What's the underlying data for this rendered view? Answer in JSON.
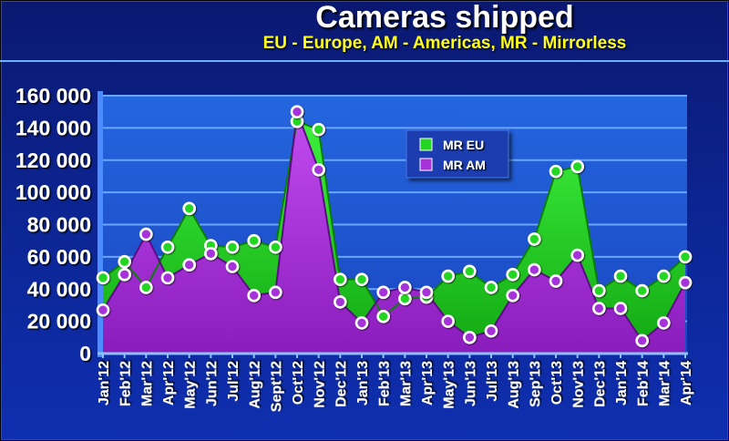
{
  "chart_data": {
    "type": "area",
    "title": "Cameras shipped",
    "subtitle": "EU - Europe, AM - Americas, MR - Mirrorless",
    "categories": [
      "Jan'12",
      "Feb'12",
      "Mar'12",
      "Apr'12",
      "May'12",
      "Jun'12",
      "Jul'12",
      "Aug'12",
      "Sept'12",
      "Oct'12",
      "Nov'12",
      "Dec'12",
      "Jan'13",
      "Feb'13",
      "Mar'13",
      "Apr'13",
      "May'13",
      "Jun'13",
      "Jul'13",
      "Aug'13",
      "Sep'13",
      "Oct'13",
      "Nov'13",
      "Dec'13",
      "Jan'14",
      "Feb'14",
      "Mar'14",
      "Apr'14"
    ],
    "ylim": [
      0,
      160000
    ],
    "yticks": [
      0,
      20000,
      40000,
      60000,
      80000,
      100000,
      120000,
      140000,
      160000
    ],
    "ytick_labels": [
      "0",
      "20 000",
      "40 000",
      "60 000",
      "80 000",
      "100 000",
      "120 000",
      "140 000",
      "160 000"
    ],
    "grid": true,
    "legend_position": "top-center",
    "series": [
      {
        "name": "MR EU",
        "color": "#22d622",
        "values": [
          47000,
          57000,
          41000,
          66000,
          90000,
          67000,
          66000,
          70000,
          66000,
          144000,
          139000,
          46000,
          46000,
          23000,
          34000,
          35000,
          48000,
          51000,
          41000,
          49000,
          71000,
          113000,
          116000,
          39000,
          48000,
          39000,
          48000,
          60000
        ]
      },
      {
        "name": "MR AM",
        "color": "#a632d9",
        "values": [
          27000,
          49000,
          74000,
          47000,
          55000,
          62000,
          54000,
          36000,
          38000,
          150000,
          114000,
          32000,
          19000,
          38000,
          41000,
          38000,
          20000,
          10000,
          14000,
          36000,
          52000,
          45000,
          61000,
          28000,
          28000,
          8000,
          19000,
          44000
        ]
      }
    ]
  }
}
